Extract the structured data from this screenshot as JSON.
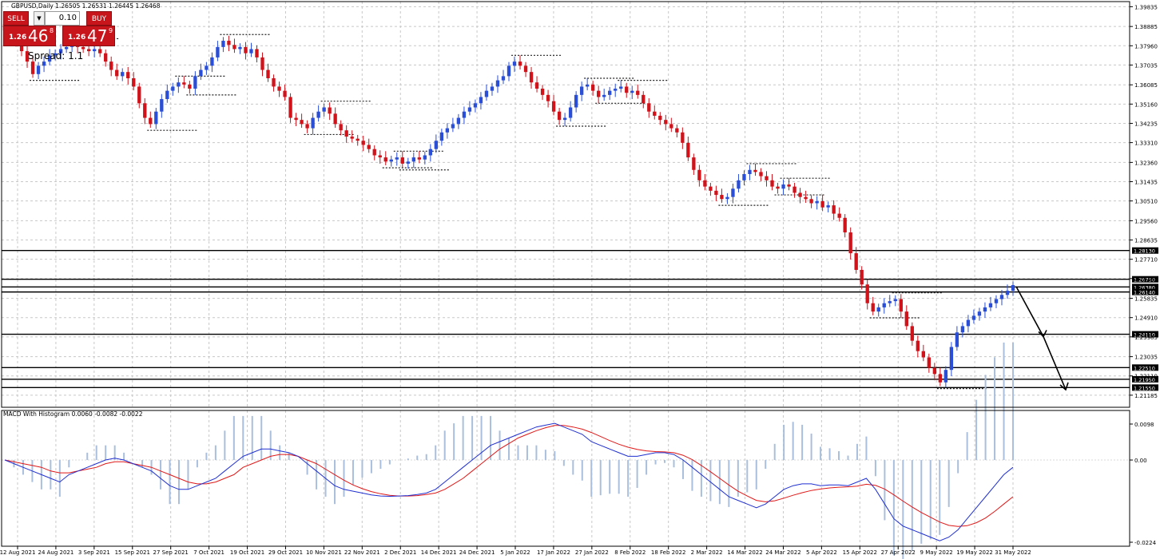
{
  "header": {
    "symbol_line": "GBPUSD,Daily  1.26505 1.26531 1.26445 1.26468",
    "macd_label": "MACD With Histogram 0.0060 -0.0082 -0.0022"
  },
  "trade_panel": {
    "sell_label": "SELL",
    "buy_label": "BUY",
    "lot_value": "0.10",
    "sell_small": "1.26",
    "sell_big": "46",
    "sell_sup": "8",
    "buy_small": "1.26",
    "buy_big": "47",
    "buy_sup": "9",
    "spread": "Spread: 1.1"
  },
  "colors": {
    "bull": "#2a4fd6",
    "bear": "#d0121b",
    "macd_line": "#1f2fd0",
    "signal_line": "#e01818",
    "histogram": "#a9bfdc",
    "grid": "#c8c8c8"
  },
  "chart_data": [
    {
      "type": "candlestick",
      "symbol": "GBPUSD",
      "timeframe": "Daily",
      "ylim": [
        1.2072,
        1.3985
      ],
      "y_ticks": [
        "1.39835",
        "1.38885",
        "1.37960",
        "1.37035",
        "1.36085",
        "1.35160",
        "1.34235",
        "1.33310",
        "1.32360",
        "1.31435",
        "1.30510",
        "1.29560",
        "1.28635",
        "1.27710",
        "1.26785",
        "1.25835",
        "1.24910",
        "1.23985",
        "1.23035",
        "1.22110",
        "1.21185"
      ],
      "x_ticks": [
        "12 Aug 2021",
        "24 Aug 2021",
        "3 Sep 2021",
        "15 Sep 2021",
        "27 Sep 2021",
        "7 Oct 2021",
        "19 Oct 2021",
        "29 Oct 2021",
        "10 Nov 2021",
        "22 Nov 2021",
        "2 Dec 2021",
        "14 Dec 2021",
        "24 Dec 2021",
        "5 Jan 2022",
        "17 Jan 2022",
        "27 Jan 2022",
        "8 Feb 2022",
        "18 Feb 2022",
        "2 Mar 2022",
        "14 Mar 2022",
        "24 Mar 2022",
        "5 Apr 2022",
        "15 Apr 2022",
        "27 Apr 2022",
        "9 May 2022",
        "19 May 2022",
        "31 May 2022"
      ],
      "levels": [
        "1.28130",
        "1.26750",
        "1.26380",
        "1.26140",
        "1.24110",
        "1.22510",
        "1.21950",
        "1.21550"
      ],
      "closes": [
        1.387,
        1.383,
        1.381,
        1.377,
        1.372,
        1.366,
        1.37,
        1.372,
        1.375,
        1.376,
        1.378,
        1.379,
        1.38,
        1.379,
        1.378,
        1.377,
        1.378,
        1.376,
        1.372,
        1.368,
        1.365,
        1.367,
        1.364,
        1.36,
        1.352,
        1.345,
        1.342,
        1.348,
        1.354,
        1.358,
        1.36,
        1.362,
        1.361,
        1.359,
        1.365,
        1.368,
        1.37,
        1.374,
        1.379,
        1.382,
        1.38,
        1.378,
        1.379,
        1.376,
        1.378,
        1.374,
        1.368,
        1.364,
        1.36,
        1.358,
        1.355,
        1.345,
        1.344,
        1.342,
        1.34,
        1.345,
        1.348,
        1.35,
        1.347,
        1.342,
        1.339,
        1.336,
        1.335,
        1.334,
        1.332,
        1.33,
        1.327,
        1.326,
        1.324,
        1.325,
        1.326,
        1.323,
        1.324,
        1.326,
        1.325,
        1.327,
        1.33,
        1.334,
        1.338,
        1.34,
        1.342,
        1.345,
        1.348,
        1.35,
        1.352,
        1.355,
        1.358,
        1.36,
        1.363,
        1.365,
        1.37,
        1.372,
        1.37,
        1.367,
        1.362,
        1.359,
        1.356,
        1.353,
        1.348,
        1.344,
        1.345,
        1.35,
        1.356,
        1.36,
        1.361,
        1.358,
        1.355,
        1.356,
        1.358,
        1.359,
        1.36,
        1.357,
        1.358,
        1.356,
        1.352,
        1.348,
        1.346,
        1.344,
        1.342,
        1.34,
        1.338,
        1.333,
        1.326,
        1.32,
        1.315,
        1.312,
        1.31,
        1.308,
        1.306,
        1.307,
        1.311,
        1.315,
        1.318,
        1.32,
        1.319,
        1.317,
        1.315,
        1.312,
        1.311,
        1.313,
        1.312,
        1.309,
        1.307,
        1.306,
        1.304,
        1.305,
        1.302,
        1.303,
        1.299,
        1.297,
        1.29,
        1.28,
        1.272,
        1.265,
        1.256,
        1.252,
        1.254,
        1.256,
        1.257,
        1.258,
        1.252,
        1.245,
        1.238,
        1.233,
        1.23,
        1.225,
        1.222,
        1.218,
        1.224,
        1.235,
        1.242,
        1.245,
        1.248,
        1.25,
        1.252,
        1.254,
        1.256,
        1.258,
        1.26,
        1.262,
        1.2647
      ]
    },
    {
      "type": "macd",
      "ylim": [
        -0.0224,
        0.0098
      ],
      "y_ticks": [
        "0.0098",
        "0.00",
        "-0.0224"
      ],
      "macd": [
        0.0,
        -0.001,
        -0.002,
        -0.003,
        -0.004,
        -0.005,
        -0.006,
        -0.004,
        -0.003,
        -0.002,
        -0.001,
        0.0,
        0.0005,
        0.0,
        -0.001,
        -0.002,
        -0.003,
        -0.005,
        -0.007,
        -0.008,
        -0.008,
        -0.007,
        -0.006,
        -0.005,
        -0.003,
        -0.001,
        0.001,
        0.002,
        0.003,
        0.003,
        0.0025,
        0.002,
        0.001,
        -0.001,
        -0.003,
        -0.005,
        -0.007,
        -0.008,
        -0.0085,
        -0.009,
        -0.0095,
        -0.0098,
        -0.0099,
        -0.0098,
        -0.0097,
        -0.0094,
        -0.009,
        -0.008,
        -0.006,
        -0.004,
        -0.002,
        0.0,
        0.002,
        0.004,
        0.005,
        0.006,
        0.007,
        0.008,
        0.009,
        0.0095,
        0.01,
        0.009,
        0.008,
        0.007,
        0.005,
        0.004,
        0.003,
        0.002,
        0.001,
        0.001,
        0.0015,
        0.002,
        0.002,
        0.0015,
        0.0,
        -0.002,
        -0.004,
        -0.006,
        -0.008,
        -0.01,
        -0.011,
        -0.012,
        -0.013,
        -0.012,
        -0.01,
        -0.008,
        -0.007,
        -0.0065,
        -0.0065,
        -0.007,
        -0.0068,
        -0.0068,
        -0.007,
        -0.006,
        -0.005,
        -0.008,
        -0.012,
        -0.016,
        -0.018,
        -0.019,
        -0.02,
        -0.021,
        -0.022,
        -0.021,
        -0.019,
        -0.016,
        -0.013,
        -0.01,
        -0.007,
        -0.004,
        -0.002
      ],
      "signal": [
        0.0,
        -0.0005,
        -0.001,
        -0.0015,
        -0.002,
        -0.003,
        -0.0035,
        -0.0035,
        -0.003,
        -0.0025,
        -0.002,
        -0.001,
        -0.0005,
        -0.0005,
        -0.001,
        -0.0015,
        -0.002,
        -0.003,
        -0.004,
        -0.005,
        -0.006,
        -0.0065,
        -0.0065,
        -0.006,
        -0.005,
        -0.004,
        -0.002,
        -0.001,
        0.0,
        0.001,
        0.0015,
        0.0015,
        0.001,
        0.0,
        -0.001,
        -0.0025,
        -0.004,
        -0.0055,
        -0.0068,
        -0.0078,
        -0.0086,
        -0.0092,
        -0.0096,
        -0.0098,
        -0.0098,
        -0.0097,
        -0.0094,
        -0.009,
        -0.008,
        -0.0065,
        -0.005,
        -0.003,
        -0.001,
        0.001,
        0.003,
        0.0045,
        0.006,
        0.007,
        0.008,
        0.0088,
        0.0094,
        0.0094,
        0.009,
        0.0084,
        0.0075,
        0.0064,
        0.0053,
        0.0043,
        0.0035,
        0.0029,
        0.0025,
        0.0023,
        0.0022,
        0.002,
        0.0013,
        0.0001,
        -0.0015,
        -0.0032,
        -0.005,
        -0.0068,
        -0.0085,
        -0.0098,
        -0.011,
        -0.0114,
        -0.0111,
        -0.0104,
        -0.0096,
        -0.0089,
        -0.0083,
        -0.0079,
        -0.0076,
        -0.0074,
        -0.0073,
        -0.0071,
        -0.0066,
        -0.0069,
        -0.0079,
        -0.0095,
        -0.0112,
        -0.0128,
        -0.0143,
        -0.0156,
        -0.0169,
        -0.0178,
        -0.0181,
        -0.0179,
        -0.0171,
        -0.0158,
        -0.014,
        -0.012,
        -0.01
      ]
    }
  ]
}
